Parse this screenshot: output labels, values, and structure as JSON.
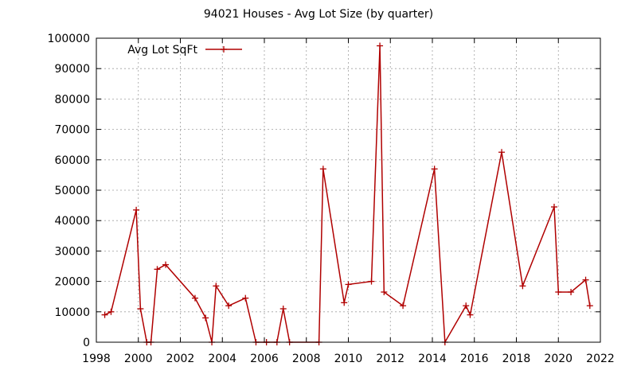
{
  "chart_data": {
    "type": "line",
    "title": "94021 Houses - Avg Lot Size (by quarter)",
    "xlabel": "",
    "ylabel": "",
    "xlim": [
      1998,
      2022
    ],
    "ylim": [
      0,
      100000
    ],
    "x_ticks": [
      "1998",
      "2000",
      "2002",
      "2004",
      "2006",
      "2008",
      "2010",
      "2012",
      "2014",
      "2016",
      "2018",
      "2020",
      "2022"
    ],
    "y_ticks": [
      "0",
      "10000",
      "20000",
      "30000",
      "40000",
      "50000",
      "60000",
      "70000",
      "80000",
      "90000",
      "100000"
    ],
    "grid": true,
    "legend_position": "top-left",
    "series": [
      {
        "name": "Avg Lot SqFt",
        "color": "#b00000",
        "x": [
          1998.4,
          1998.7,
          1999.9,
          2000.1,
          2000.4,
          2000.6,
          2000.9,
          2001.3,
          2002.7,
          2003.2,
          2003.5,
          2003.7,
          2004.3,
          2005.1,
          2005.6,
          2006.1,
          2006.6,
          2006.9,
          2007.2,
          2008.6,
          2008.8,
          2009.8,
          2010.0,
          2011.1,
          2011.5,
          2011.7,
          2012.6,
          2014.1,
          2014.6,
          2015.6,
          2015.8,
          2017.3,
          2018.3,
          2019.8,
          2020.0,
          2020.6,
          2021.3,
          2021.5
        ],
        "y": [
          9000,
          10000,
          43500,
          11000,
          0,
          0,
          24000,
          25500,
          14500,
          8000,
          0,
          18500,
          12000,
          14500,
          0,
          0,
          0,
          11000,
          0,
          0,
          57000,
          13000,
          19000,
          20000,
          97500,
          16500,
          12000,
          57000,
          0,
          12000,
          9000,
          62500,
          18500,
          44500,
          16500,
          16500,
          20500,
          12000
        ]
      }
    ]
  }
}
